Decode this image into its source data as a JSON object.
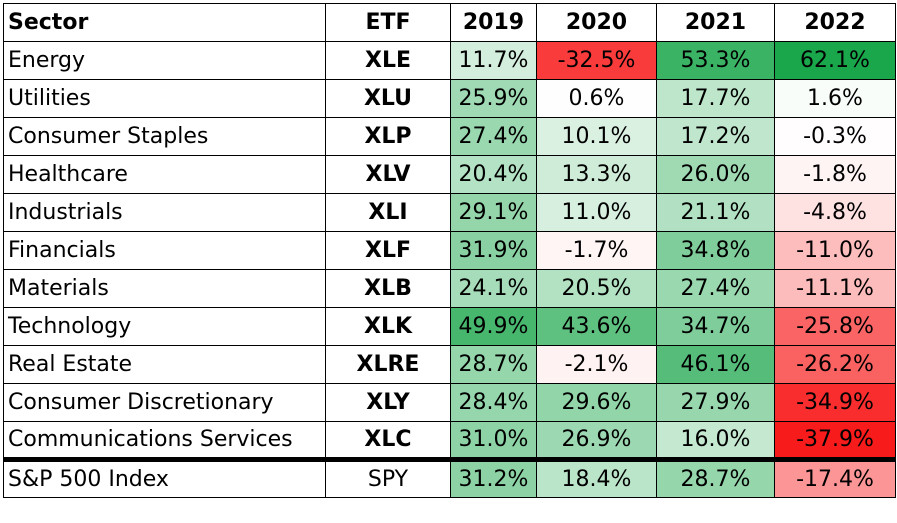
{
  "chart_data": {
    "type": "table",
    "columns": [
      "Sector",
      "ETF",
      "2019",
      "2020",
      "2021",
      "2022"
    ],
    "rows": [
      {
        "sector": "Energy",
        "etf": "XLE",
        "values": [
          "11.7%",
          "-32.5%",
          "53.3%",
          "62.1%"
        ]
      },
      {
        "sector": "Utilities",
        "etf": "XLU",
        "values": [
          "25.9%",
          "0.6%",
          "17.7%",
          "1.6%"
        ]
      },
      {
        "sector": "Consumer Staples",
        "etf": "XLP",
        "values": [
          "27.4%",
          "10.1%",
          "17.2%",
          "-0.3%"
        ]
      },
      {
        "sector": "Healthcare",
        "etf": "XLV",
        "values": [
          "20.4%",
          "13.3%",
          "26.0%",
          "-1.8%"
        ]
      },
      {
        "sector": "Industrials",
        "etf": "XLI",
        "values": [
          "29.1%",
          "11.0%",
          "21.1%",
          "-4.8%"
        ]
      },
      {
        "sector": "Financials",
        "etf": "XLF",
        "values": [
          "31.9%",
          "-1.7%",
          "34.8%",
          "-11.0%"
        ]
      },
      {
        "sector": "Materials",
        "etf": "XLB",
        "values": [
          "24.1%",
          "20.5%",
          "27.4%",
          "-11.1%"
        ]
      },
      {
        "sector": "Technology",
        "etf": "XLK",
        "values": [
          "49.9%",
          "43.6%",
          "34.7%",
          "-25.8%"
        ]
      },
      {
        "sector": "Real Estate",
        "etf": "XLRE",
        "values": [
          "28.7%",
          "-2.1%",
          "46.1%",
          "-26.2%"
        ]
      },
      {
        "sector": "Consumer Discretionary",
        "etf": "XLY",
        "values": [
          "28.4%",
          "29.6%",
          "27.9%",
          "-34.9%"
        ]
      },
      {
        "sector": "Communications Services",
        "etf": "XLC",
        "values": [
          "31.0%",
          "26.9%",
          "16.0%",
          "-37.9%"
        ]
      }
    ],
    "summary": {
      "sector": "S&P 500 Index",
      "etf": "SPY",
      "values": [
        "31.2%",
        "18.4%",
        "28.7%",
        "-17.4%"
      ]
    },
    "color_scale": {
      "positive": "#1aa64a",
      "negative": "#f81b1b",
      "neutral": "#ffffff",
      "pos_max": 62.1,
      "neg_max": 37.9
    }
  }
}
